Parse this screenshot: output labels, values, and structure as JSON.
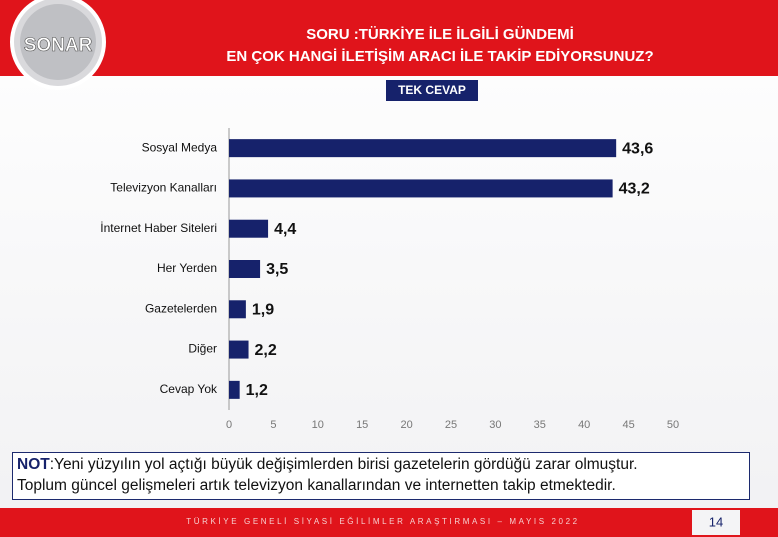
{
  "logo": "SONAR",
  "chart_data": {
    "type": "bar",
    "orientation": "horizontal",
    "title_lines": [
      "SORU :TÜRKİYE İLE İLGİLİ GÜNDEMİ",
      "EN ÇOK HANGİ İLETİŞİM ARACI İLE TAKİP EDİYORSUNUZ?"
    ],
    "badge": "TEK CEVAP",
    "categories": [
      "Sosyal Medya",
      "Televizyon Kanalları",
      "İnternet Haber Siteleri",
      "Her Yerden",
      "Gazetelerden",
      "Diğer",
      "Cevap Yok"
    ],
    "values": [
      43.6,
      43.2,
      4.4,
      3.5,
      1.9,
      2.2,
      1.2
    ],
    "value_labels": [
      "43,6",
      "43,2",
      "4,4",
      "3,5",
      "1,9",
      "2,2",
      "1,2"
    ],
    "color": "#16226b",
    "xlim": [
      0,
      50
    ],
    "xticks": [
      0,
      5,
      10,
      15,
      20,
      25,
      30,
      35,
      40,
      45,
      50
    ],
    "grid": false
  },
  "note": {
    "label": "NOT",
    "lines": [
      ":Yeni yüzyılın yol açtığı büyük değişimlerden birisi gazetelerin gördüğü zarar olmuştur.",
      "Toplum güncel gelişmeleri artık televizyon kanallarından ve internetten takip etmektedir."
    ]
  },
  "footer": "TÜRKİYE GENELİ SİYASİ EĞİLİMLER ARAŞTIRMASI – MAYIS 2022",
  "page_number": 14
}
